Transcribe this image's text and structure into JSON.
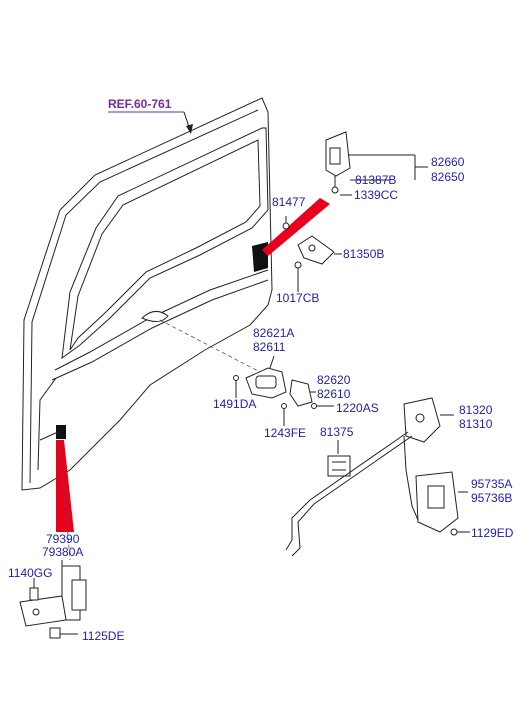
{
  "reference": "REF.60-761",
  "parts": {
    "p82660": "82660",
    "p82650": "82650",
    "p81387B": "81387B",
    "p1339CC": "1339CC",
    "p81477": "81477",
    "p81350B": "81350B",
    "p1017CB": "1017CB",
    "p82621A": "82621A",
    "p82611": "82611",
    "p82620": "82620",
    "p82610": "82610",
    "p1491DA": "1491DA",
    "p1220AS": "1220AS",
    "p81375": "81375",
    "p1243FE": "1243FE",
    "p81320": "81320",
    "p81310": "81310",
    "p95735A": "95735A",
    "p95736B": "95736B",
    "p1129ED": "1129ED",
    "p79390": "79390",
    "p79380A": "79380A",
    "p1140GG": "1140GG",
    "p1125DE": "1125DE"
  },
  "colors": {
    "label": "#1f1fb0",
    "reference": "#7a2a9a",
    "highlight": "#e8001c"
  }
}
